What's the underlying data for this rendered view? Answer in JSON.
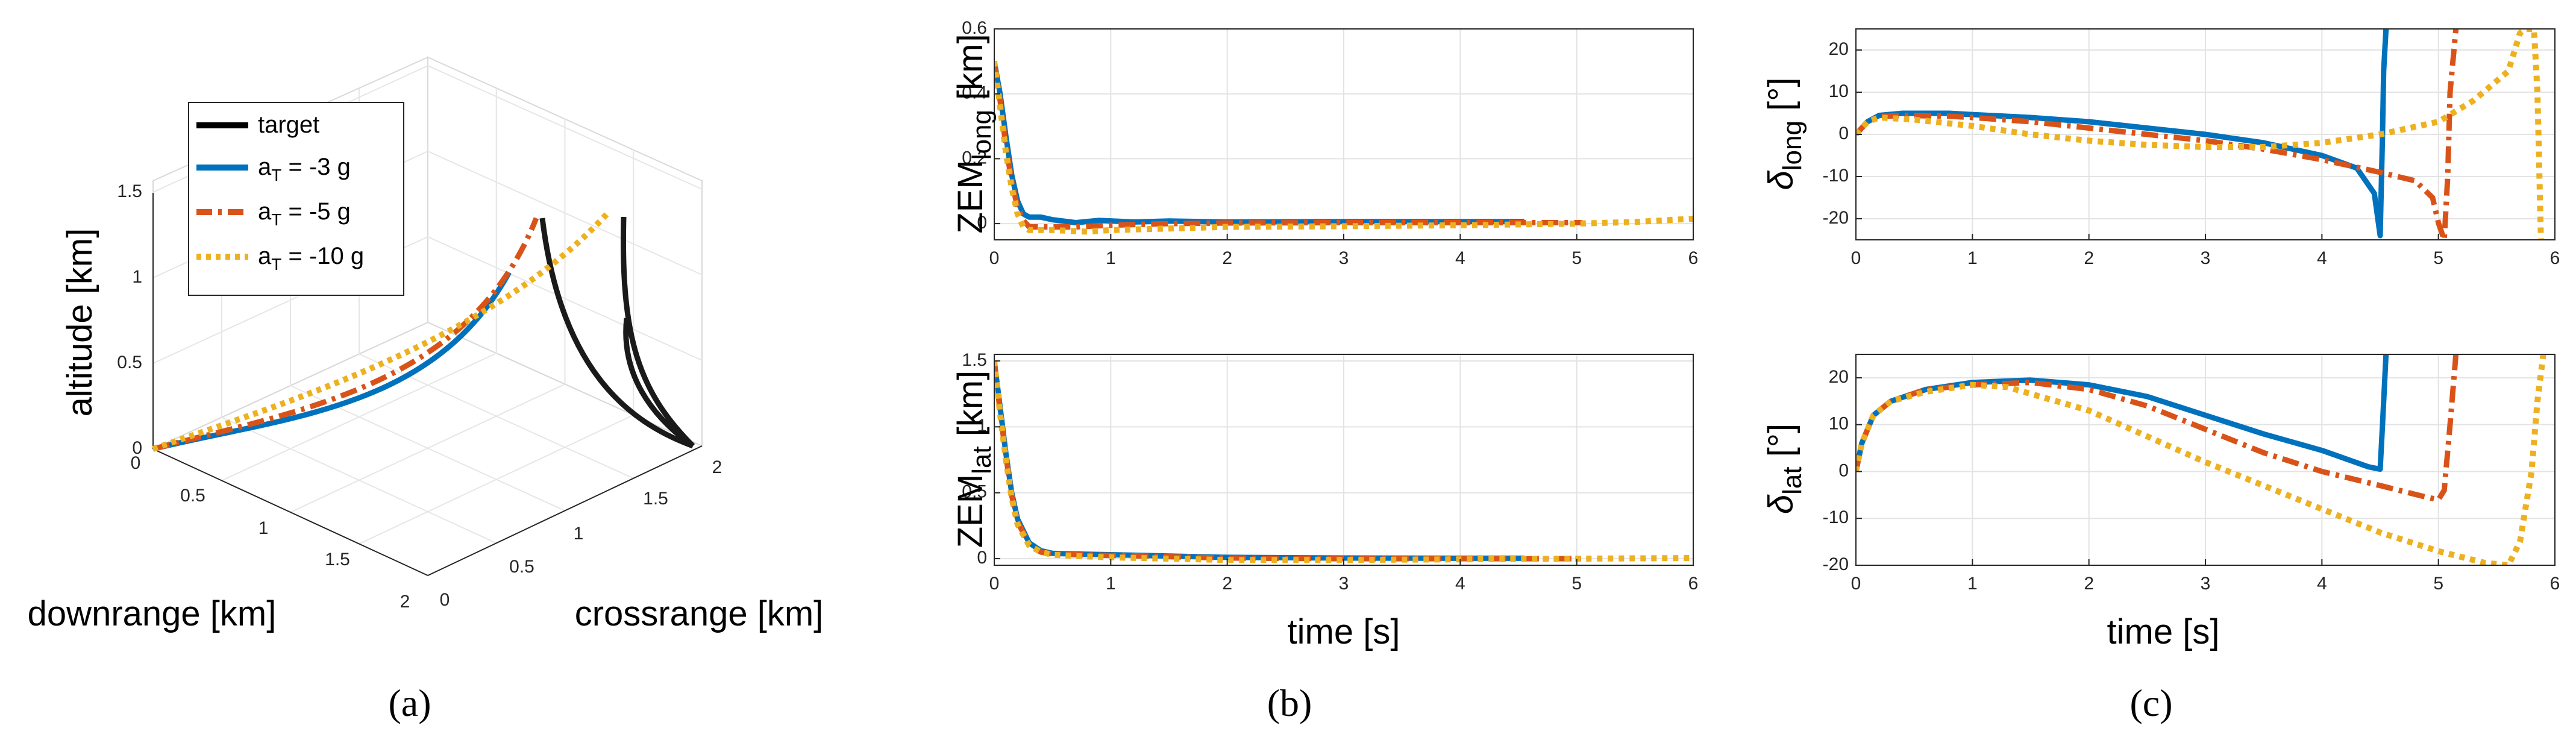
{
  "figure": {
    "colors": {
      "target": "#000000",
      "s3": "#0072BD",
      "s5": "#D95319",
      "s10": "#EDB120",
      "grid": "#E3E3E3",
      "axis": "#262626"
    }
  },
  "chart_data": [
    {
      "id": "a",
      "type": "line3d",
      "panel_label": "(a)",
      "xlabel": "downrange [km]",
      "ylabel": "crossrange [km]",
      "zlabel": "altitude [km]",
      "downrange_ticks": [
        "0",
        "0.5",
        "1",
        "1.5",
        "2"
      ],
      "crossrange_ticks": [
        "0",
        "0.5",
        "1",
        "1.5",
        "2"
      ],
      "altitude_ticks": [
        "0",
        "0.5",
        "1",
        "1.5"
      ],
      "legend": [
        "target",
        "a_T = -3 g",
        "a_T = -5 g",
        "a_T = -10 g"
      ],
      "legend_items": [
        {
          "main": "target",
          "sub": "",
          "rest": ""
        },
        {
          "main": "a",
          "sub": "T",
          "rest": " = -3 g"
        },
        {
          "main": "a",
          "sub": "T",
          "rest": " = -5 g"
        },
        {
          "main": "a",
          "sub": "T",
          "rest": " = -10 g"
        }
      ]
    },
    {
      "id": "b_top",
      "type": "line",
      "ylabel": "ZEM",
      "ylabel_sub": "long",
      "ylabel_unit": " [km]",
      "xlim": [
        0,
        6
      ],
      "ylim": [
        -0.05,
        0.6
      ],
      "xticks": [
        0,
        1,
        2,
        3,
        4,
        5,
        6
      ],
      "yticks": [
        0,
        0.2,
        0.4,
        0.6
      ],
      "xtick_labels": [
        "0",
        "1",
        "2",
        "3",
        "4",
        "5",
        "6"
      ],
      "ytick_labels": [
        "0",
        "0.2",
        "0.4",
        "0.6"
      ],
      "series": [
        {
          "name": "a_T = -3 g",
          "style": "solid",
          "points": [
            [
              0,
              0.5
            ],
            [
              0.05,
              0.4
            ],
            [
              0.1,
              0.27
            ],
            [
              0.15,
              0.15
            ],
            [
              0.2,
              0.07
            ],
            [
              0.25,
              0.03
            ],
            [
              0.3,
              0.02
            ],
            [
              0.4,
              0.02
            ],
            [
              0.5,
              0.012
            ],
            [
              0.7,
              0.003
            ],
            [
              0.9,
              0.01
            ],
            [
              1.2,
              0.005
            ],
            [
              1.5,
              0.008
            ],
            [
              2,
              0.005
            ],
            [
              3,
              0.006
            ],
            [
              4,
              0.006
            ],
            [
              4.5,
              0.006
            ],
            [
              4.55,
              0.006
            ]
          ]
        },
        {
          "name": "a_T = -5 g",
          "style": "dashdot",
          "points": [
            [
              0,
              0.5
            ],
            [
              0.05,
              0.38
            ],
            [
              0.1,
              0.24
            ],
            [
              0.15,
              0.13
            ],
            [
              0.2,
              0.05
            ],
            [
              0.25,
              0.01
            ],
            [
              0.3,
              -0.01
            ],
            [
              0.5,
              -0.01
            ],
            [
              0.7,
              -0.01
            ],
            [
              1,
              -0.005
            ],
            [
              1.5,
              0
            ],
            [
              2,
              0.002
            ],
            [
              3,
              0.003
            ],
            [
              4,
              0.003
            ],
            [
              5.05,
              0.003
            ]
          ]
        },
        {
          "name": "a_T = -10 g",
          "style": "dotted",
          "points": [
            [
              0,
              0.5
            ],
            [
              0.05,
              0.36
            ],
            [
              0.1,
              0.22
            ],
            [
              0.15,
              0.11
            ],
            [
              0.2,
              0.03
            ],
            [
              0.25,
              -0.01
            ],
            [
              0.3,
              -0.02
            ],
            [
              0.5,
              -0.02
            ],
            [
              0.8,
              -0.025
            ],
            [
              1,
              -0.02
            ],
            [
              1.5,
              -0.015
            ],
            [
              2,
              -0.01
            ],
            [
              3,
              -0.008
            ],
            [
              4,
              -0.005
            ],
            [
              5,
              0
            ],
            [
              5.5,
              0.005
            ],
            [
              6,
              0.015
            ]
          ]
        }
      ]
    },
    {
      "id": "b_bottom",
      "type": "line",
      "ylabel": "ZEM",
      "ylabel_sub": "lat",
      "ylabel_unit": " [km]",
      "xlabel": "time [s]",
      "panel_label": "(b)",
      "xlim": [
        0,
        6
      ],
      "ylim": [
        -0.05,
        1.55
      ],
      "xticks": [
        0,
        1,
        2,
        3,
        4,
        5,
        6
      ],
      "yticks": [
        0,
        0.5,
        1,
        1.5
      ],
      "xtick_labels": [
        "0",
        "1",
        "2",
        "3",
        "4",
        "5",
        "6"
      ],
      "ytick_labels": [
        "0",
        "0.5",
        "1",
        "1.5"
      ],
      "series": [
        {
          "name": "a_T = -3 g",
          "style": "solid",
          "points": [
            [
              0,
              1.5
            ],
            [
              0.05,
              1.15
            ],
            [
              0.1,
              0.8
            ],
            [
              0.15,
              0.5
            ],
            [
              0.2,
              0.3
            ],
            [
              0.3,
              0.12
            ],
            [
              0.4,
              0.06
            ],
            [
              0.5,
              0.04
            ],
            [
              0.7,
              0.035
            ],
            [
              1,
              0.03
            ],
            [
              1.5,
              0.02
            ],
            [
              2,
              0.01
            ],
            [
              3,
              0.005
            ],
            [
              4,
              0.003
            ],
            [
              4.55,
              0.003
            ]
          ]
        },
        {
          "name": "a_T = -5 g",
          "style": "dashdot",
          "points": [
            [
              0,
              1.5
            ],
            [
              0.05,
              1.12
            ],
            [
              0.1,
              0.78
            ],
            [
              0.15,
              0.48
            ],
            [
              0.2,
              0.28
            ],
            [
              0.3,
              0.11
            ],
            [
              0.4,
              0.05
            ],
            [
              0.5,
              0.035
            ],
            [
              0.7,
              0.03
            ],
            [
              1,
              0.025
            ],
            [
              1.5,
              0.015
            ],
            [
              2,
              0.005
            ],
            [
              3,
              0
            ],
            [
              4,
              0
            ],
            [
              5.05,
              0
            ]
          ]
        },
        {
          "name": "a_T = -10 g",
          "style": "dotted",
          "points": [
            [
              0,
              1.5
            ],
            [
              0.05,
              1.1
            ],
            [
              0.1,
              0.75
            ],
            [
              0.15,
              0.46
            ],
            [
              0.2,
              0.26
            ],
            [
              0.3,
              0.1
            ],
            [
              0.4,
              0.05
            ],
            [
              0.5,
              0.03
            ],
            [
              0.7,
              0.02
            ],
            [
              1,
              0.01
            ],
            [
              1.5,
              0
            ],
            [
              2,
              -0.01
            ],
            [
              3,
              -0.01
            ],
            [
              4,
              -0.005
            ],
            [
              5,
              0
            ],
            [
              6,
              0.005
            ]
          ]
        }
      ]
    },
    {
      "id": "c_top",
      "type": "line",
      "ylabel": "δ",
      "ylabel_sub": "long",
      "ylabel_unit": " [°]",
      "xlim": [
        0,
        6
      ],
      "ylim": [
        -25,
        25
      ],
      "xticks": [
        0,
        1,
        2,
        3,
        4,
        5,
        6
      ],
      "yticks": [
        -20,
        -10,
        0,
        10,
        20
      ],
      "xtick_labels": [
        "0",
        "1",
        "2",
        "3",
        "4",
        "5",
        "6"
      ],
      "ytick_labels": [
        "-20",
        "-10",
        "0",
        "10",
        "20"
      ],
      "series": [
        {
          "name": "a_T = -3 g",
          "style": "solid",
          "points": [
            [
              0,
              0
            ],
            [
              0.1,
              3
            ],
            [
              0.2,
              4.5
            ],
            [
              0.4,
              5
            ],
            [
              0.8,
              5
            ],
            [
              1,
              4.7
            ],
            [
              1.5,
              4
            ],
            [
              2,
              3
            ],
            [
              2.5,
              1.5
            ],
            [
              3,
              0
            ],
            [
              3.5,
              -2
            ],
            [
              4,
              -5
            ],
            [
              4.3,
              -8
            ],
            [
              4.45,
              -14
            ],
            [
              4.5,
              -24
            ],
            [
              4.52,
              0
            ],
            [
              4.53,
              15
            ],
            [
              4.55,
              25
            ]
          ]
        },
        {
          "name": "a_T = -5 g",
          "style": "dashdot",
          "points": [
            [
              0,
              0
            ],
            [
              0.1,
              3
            ],
            [
              0.2,
              4.2
            ],
            [
              0.4,
              4.5
            ],
            [
              0.8,
              4.3
            ],
            [
              1,
              4
            ],
            [
              1.5,
              3
            ],
            [
              2,
              1.5
            ],
            [
              2.5,
              0
            ],
            [
              3,
              -1.5
            ],
            [
              3.5,
              -3.5
            ],
            [
              4,
              -6
            ],
            [
              4.5,
              -9
            ],
            [
              4.8,
              -11
            ],
            [
              4.95,
              -15
            ],
            [
              5,
              -21
            ],
            [
              5.05,
              -25
            ],
            [
              5.08,
              -10
            ],
            [
              5.1,
              10
            ],
            [
              5.15,
              25
            ]
          ]
        },
        {
          "name": "a_T = -10 g",
          "style": "dotted",
          "points": [
            [
              0,
              0
            ],
            [
              0.1,
              3
            ],
            [
              0.2,
              4
            ],
            [
              0.5,
              3.5
            ],
            [
              1,
              2
            ],
            [
              1.5,
              0
            ],
            [
              2,
              -1.5
            ],
            [
              2.5,
              -2.5
            ],
            [
              3,
              -3
            ],
            [
              3.5,
              -3
            ],
            [
              4,
              -2
            ],
            [
              4.5,
              0
            ],
            [
              5,
              3
            ],
            [
              5.3,
              8
            ],
            [
              5.6,
              15
            ],
            [
              5.7,
              24
            ],
            [
              5.75,
              25
            ],
            [
              5.82,
              25
            ],
            [
              5.85,
              10
            ],
            [
              5.88,
              -25
            ]
          ]
        }
      ]
    },
    {
      "id": "c_bottom",
      "type": "line",
      "ylabel": "δ",
      "ylabel_sub": "lat",
      "ylabel_unit": " [°]",
      "xlabel": "time [s]",
      "panel_label": "(c)",
      "xlim": [
        0,
        6
      ],
      "ylim": [
        -20,
        25
      ],
      "xticks": [
        0,
        1,
        2,
        3,
        4,
        5,
        6
      ],
      "yticks": [
        -20,
        -10,
        0,
        10,
        20
      ],
      "xtick_labels": [
        "0",
        "1",
        "2",
        "3",
        "4",
        "5",
        "6"
      ],
      "ytick_labels": [
        "-20",
        "-10",
        "0",
        "10",
        "20"
      ],
      "series": [
        {
          "name": "a_T = -3 g",
          "style": "solid",
          "points": [
            [
              0,
              0
            ],
            [
              0.05,
              6
            ],
            [
              0.15,
              12
            ],
            [
              0.3,
              15
            ],
            [
              0.6,
              17.5
            ],
            [
              1,
              19
            ],
            [
              1.5,
              19.5
            ],
            [
              2,
              18.5
            ],
            [
              2.5,
              16
            ],
            [
              3,
              12
            ],
            [
              3.5,
              8
            ],
            [
              4,
              4.5
            ],
            [
              4.4,
              1
            ],
            [
              4.5,
              0.5
            ],
            [
              4.52,
              10
            ],
            [
              4.55,
              25
            ]
          ]
        },
        {
          "name": "a_T = -5 g",
          "style": "dashdot",
          "points": [
            [
              0,
              0
            ],
            [
              0.05,
              6
            ],
            [
              0.15,
              12
            ],
            [
              0.3,
              15
            ],
            [
              0.6,
              17.5
            ],
            [
              1,
              18.5
            ],
            [
              1.5,
              19
            ],
            [
              2,
              17.5
            ],
            [
              2.5,
              14
            ],
            [
              3,
              9
            ],
            [
              3.5,
              4
            ],
            [
              4,
              0
            ],
            [
              4.5,
              -3
            ],
            [
              4.9,
              -5.5
            ],
            [
              5,
              -6
            ],
            [
              5.05,
              -4
            ],
            [
              5.1,
              10
            ],
            [
              5.15,
              25
            ]
          ]
        },
        {
          "name": "a_T = -10 g",
          "style": "dotted",
          "points": [
            [
              0,
              0
            ],
            [
              0.05,
              6
            ],
            [
              0.15,
              12
            ],
            [
              0.3,
              15
            ],
            [
              0.6,
              17
            ],
            [
              1,
              18.5
            ],
            [
              1.3,
              18
            ],
            [
              2,
              13
            ],
            [
              2.5,
              7.5
            ],
            [
              3,
              2
            ],
            [
              3.5,
              -3
            ],
            [
              4,
              -8
            ],
            [
              4.5,
              -13
            ],
            [
              5,
              -17
            ],
            [
              5.4,
              -19.5
            ],
            [
              5.6,
              -20
            ],
            [
              5.7,
              -15
            ],
            [
              5.8,
              0
            ],
            [
              5.85,
              15
            ],
            [
              5.9,
              25
            ]
          ]
        }
      ]
    }
  ]
}
